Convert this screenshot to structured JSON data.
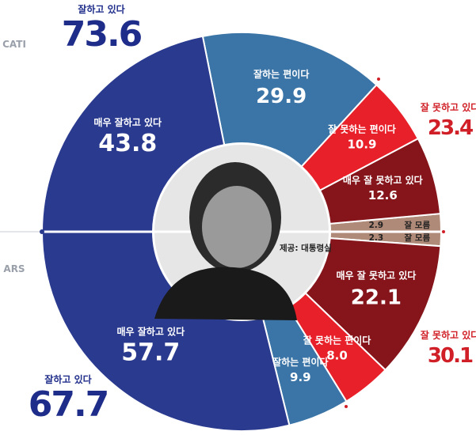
{
  "chart_data": {
    "type": "pie",
    "series": [
      {
        "name": "CATI",
        "slices": [
          {
            "label": "매우 잘하고 있다",
            "value": 43.8,
            "color": "#2a3a8f"
          },
          {
            "label": "잘하는 편이다",
            "value": 29.9,
            "color": "#3b74a6"
          },
          {
            "label": "잘 못하는 편이다",
            "value": 10.9,
            "color": "#e8202a"
          },
          {
            "label": "매우 잘 못하고 있다",
            "value": 12.6,
            "color": "#85151b"
          },
          {
            "label": "잘 모름",
            "value": 2.9,
            "color": "#b08a78"
          }
        ],
        "total_positive": {
          "label": "잘하고 있다",
          "value": 73.6
        },
        "total_negative": {
          "label": "잘 못하고 있다",
          "value": 23.4
        }
      },
      {
        "name": "ARS",
        "slices": [
          {
            "label": "매우 잘하고 있다",
            "value": 57.7,
            "color": "#2a3a8f"
          },
          {
            "label": "잘하는 편이다",
            "value": 9.9,
            "color": "#3b74a6"
          },
          {
            "label": "잘 못하는 편이다",
            "value": 8.0,
            "color": "#e8202a"
          },
          {
            "label": "매우 잘 못하고 있다",
            "value": 22.1,
            "color": "#85151b"
          },
          {
            "label": "잘 모름",
            "value": 2.3,
            "color": "#b08a78"
          }
        ],
        "total_positive": {
          "label": "잘하고 있다",
          "value": 67.7
        },
        "total_negative": {
          "label": "잘 못하고 있다",
          "value": 30.1
        }
      }
    ]
  },
  "colors": {
    "positive_text": "#1f2d8a",
    "negative_text": "#d01f26",
    "center": "#e6e6e6"
  },
  "caption": "제공: 대통령실"
}
